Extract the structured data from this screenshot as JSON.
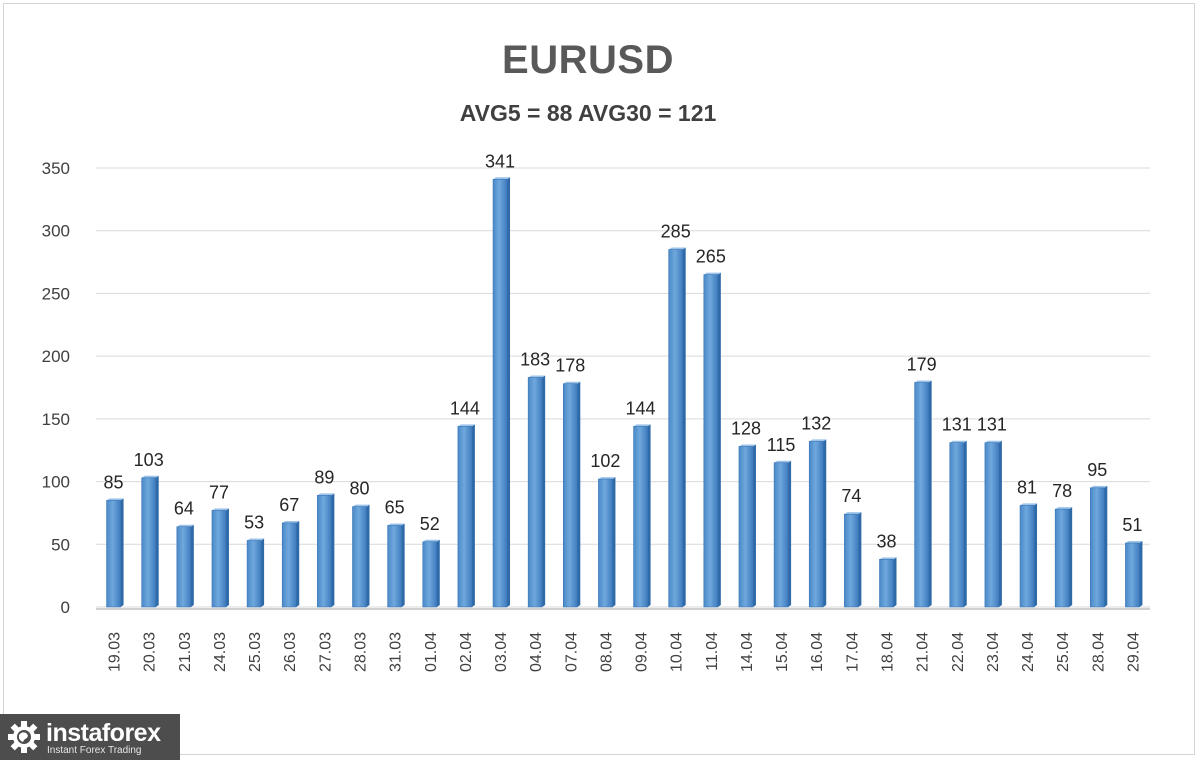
{
  "chart_data": {
    "type": "bar",
    "title": "EURUSD",
    "subtitle": "AVG5 = 88 AVG30 = 121",
    "xlabel": "",
    "ylabel": "",
    "ylim": [
      0,
      350
    ],
    "yticks": [
      0,
      50,
      100,
      150,
      200,
      250,
      300,
      350
    ],
    "grid": true,
    "legend": "none",
    "bar_color": "#5b9bd5",
    "categories": [
      "19.03",
      "20.03",
      "21.03",
      "24.03",
      "25.03",
      "26.03",
      "27.03",
      "28.03",
      "31.03",
      "01.04",
      "02.04",
      "03.04",
      "04.04",
      "07.04",
      "08.04",
      "09.04",
      "10.04",
      "11.04",
      "14.04",
      "15.04",
      "16.04",
      "17.04",
      "18.04",
      "21.04",
      "22.04",
      "23.04",
      "24.04",
      "25.04",
      "28.04",
      "29.04"
    ],
    "values": [
      85,
      103,
      64,
      77,
      53,
      67,
      89,
      80,
      65,
      52,
      144,
      341,
      183,
      178,
      102,
      144,
      285,
      265,
      128,
      115,
      132,
      74,
      38,
      179,
      131,
      131,
      81,
      78,
      95,
      51
    ]
  },
  "watermark": {
    "name": "instaforex",
    "tagline": "Instant Forex Trading",
    "icon": "gear-globe-icon"
  }
}
